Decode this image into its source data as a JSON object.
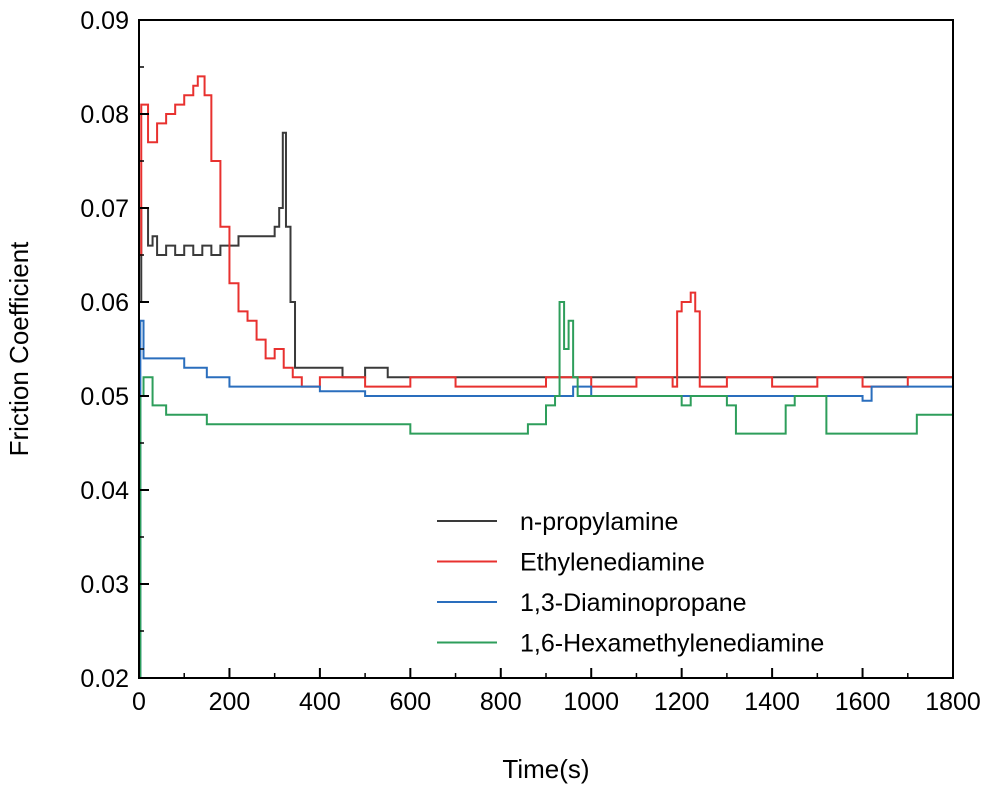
{
  "chart_data": {
    "type": "line",
    "title": "",
    "xlabel": "Time(s)",
    "ylabel": "Friction Coefficient",
    "xlim": [
      0,
      1800
    ],
    "ylim": [
      0.02,
      0.09
    ],
    "xticks": [
      0,
      200,
      400,
      600,
      800,
      1000,
      1200,
      1400,
      1600,
      1800
    ],
    "yticks": [
      0.02,
      0.03,
      0.04,
      0.05,
      0.06,
      0.07,
      0.08,
      0.09
    ],
    "xtick_labels": [
      "0",
      "200",
      "400",
      "600",
      "800",
      "1000",
      "1200",
      "1400",
      "1600",
      "1800"
    ],
    "ytick_labels": [
      "0.02",
      "0.03",
      "0.04",
      "0.05",
      "0.06",
      "0.07",
      "0.08",
      "0.09"
    ],
    "grid": false,
    "legend_position": "bottom-right",
    "series": [
      {
        "name": "n-propylamine",
        "color": "#3a3a3a",
        "x": [
          0,
          5,
          20,
          30,
          40,
          60,
          80,
          100,
          120,
          140,
          160,
          180,
          200,
          220,
          240,
          260,
          280,
          300,
          310,
          318,
          325,
          335,
          345,
          400,
          450,
          500,
          550,
          600,
          700,
          800,
          900,
          1000,
          1100,
          1200,
          1300,
          1400,
          1500,
          1600,
          1700,
          1800
        ],
        "y": [
          0.06,
          0.07,
          0.066,
          0.067,
          0.065,
          0.066,
          0.065,
          0.066,
          0.065,
          0.066,
          0.065,
          0.066,
          0.066,
          0.067,
          0.067,
          0.067,
          0.067,
          0.068,
          0.07,
          0.078,
          0.068,
          0.06,
          0.053,
          0.053,
          0.052,
          0.053,
          0.052,
          0.052,
          0.052,
          0.052,
          0.052,
          0.052,
          0.052,
          0.052,
          0.052,
          0.052,
          0.052,
          0.052,
          0.052,
          0.051
        ]
      },
      {
        "name": "Ethylenediamine",
        "color": "#e8312f",
        "x": [
          0,
          5,
          20,
          40,
          60,
          80,
          100,
          120,
          130,
          145,
          160,
          180,
          200,
          220,
          240,
          260,
          280,
          300,
          320,
          340,
          360,
          400,
          500,
          600,
          700,
          800,
          900,
          1000,
          1100,
          1180,
          1190,
          1200,
          1220,
          1230,
          1240,
          1300,
          1400,
          1500,
          1600,
          1700,
          1800
        ],
        "y": [
          0.065,
          0.081,
          0.077,
          0.079,
          0.08,
          0.081,
          0.082,
          0.083,
          0.084,
          0.082,
          0.075,
          0.068,
          0.062,
          0.059,
          0.058,
          0.056,
          0.054,
          0.055,
          0.053,
          0.052,
          0.051,
          0.052,
          0.051,
          0.052,
          0.051,
          0.051,
          0.052,
          0.051,
          0.052,
          0.051,
          0.059,
          0.06,
          0.061,
          0.059,
          0.051,
          0.052,
          0.051,
          0.052,
          0.051,
          0.052,
          0.051
        ]
      },
      {
        "name": "1,3-Diaminopropane",
        "color": "#2a6ebd",
        "x": [
          0,
          3,
          10,
          50,
          100,
          150,
          200,
          260,
          320,
          400,
          500,
          600,
          700,
          800,
          900,
          960,
          1000,
          1100,
          1200,
          1300,
          1400,
          1500,
          1600,
          1620,
          1700,
          1800
        ],
        "y": [
          0.02,
          0.058,
          0.054,
          0.054,
          0.053,
          0.052,
          0.051,
          0.051,
          0.051,
          0.0505,
          0.05,
          0.05,
          0.05,
          0.05,
          0.05,
          0.051,
          0.05,
          0.05,
          0.05,
          0.05,
          0.05,
          0.05,
          0.0495,
          0.051,
          0.051,
          0.051
        ]
      },
      {
        "name": "1,6-Hexamethylenediamine",
        "color": "#2e9e5b",
        "x": [
          0,
          3,
          10,
          30,
          60,
          100,
          150,
          200,
          300,
          400,
          500,
          600,
          700,
          800,
          860,
          900,
          920,
          930,
          940,
          950,
          960,
          970,
          1100,
          1200,
          1220,
          1300,
          1320,
          1400,
          1430,
          1450,
          1500,
          1520,
          1600,
          1700,
          1720,
          1800
        ],
        "y": [
          0.02,
          0.05,
          0.052,
          0.049,
          0.048,
          0.048,
          0.047,
          0.047,
          0.047,
          0.047,
          0.047,
          0.046,
          0.046,
          0.046,
          0.047,
          0.049,
          0.05,
          0.06,
          0.055,
          0.058,
          0.052,
          0.05,
          0.05,
          0.049,
          0.05,
          0.049,
          0.046,
          0.046,
          0.049,
          0.05,
          0.05,
          0.046,
          0.046,
          0.046,
          0.048,
          0.047
        ]
      }
    ]
  }
}
